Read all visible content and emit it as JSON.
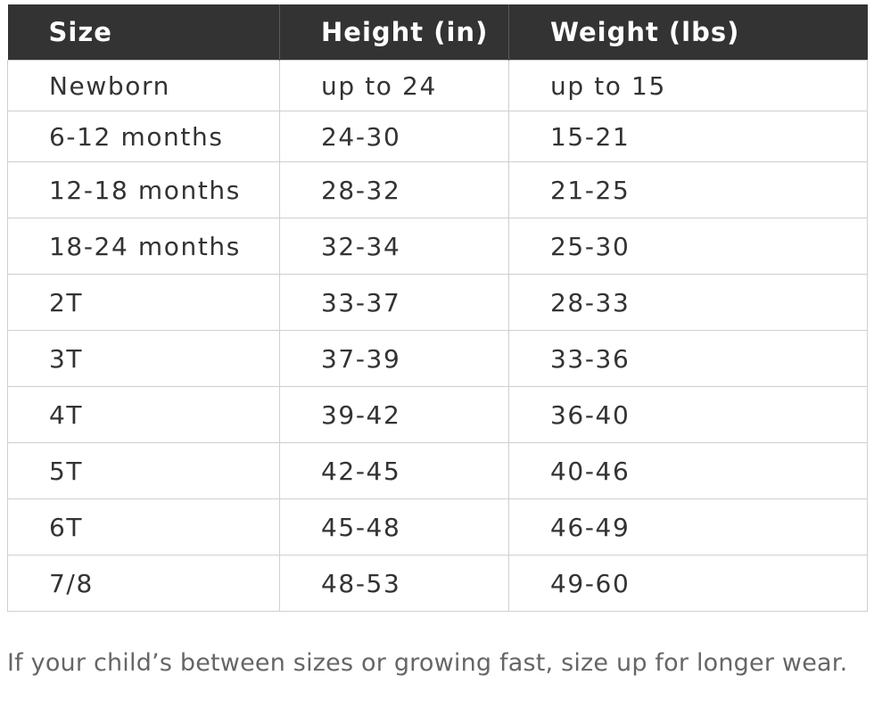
{
  "table": {
    "headers": [
      "Size",
      "Height (in)",
      "Weight (lbs)"
    ],
    "rows": [
      [
        "Newborn",
        "up to 24",
        "up to 15"
      ],
      [
        "6-12 months",
        "24-30",
        "15-21"
      ],
      [
        "12-18 months",
        "28-32",
        "21-25"
      ],
      [
        "18-24 months",
        "32-34",
        "25-30"
      ],
      [
        "2T",
        "33-37",
        "28-33"
      ],
      [
        "3T",
        "37-39",
        "33-36"
      ],
      [
        "4T",
        "39-42",
        "36-40"
      ],
      [
        "5T",
        "42-45",
        "40-46"
      ],
      [
        "6T",
        "45-48",
        "46-49"
      ],
      [
        "7/8",
        "48-53",
        "49-60"
      ]
    ]
  },
  "note": "If your child’s between sizes or growing fast, size up for longer wear.",
  "colors": {
    "header_bg": "#333333",
    "header_text": "#ffffff",
    "body_text": "#333333",
    "border": "#cfcfcf",
    "note_text": "#666666"
  }
}
